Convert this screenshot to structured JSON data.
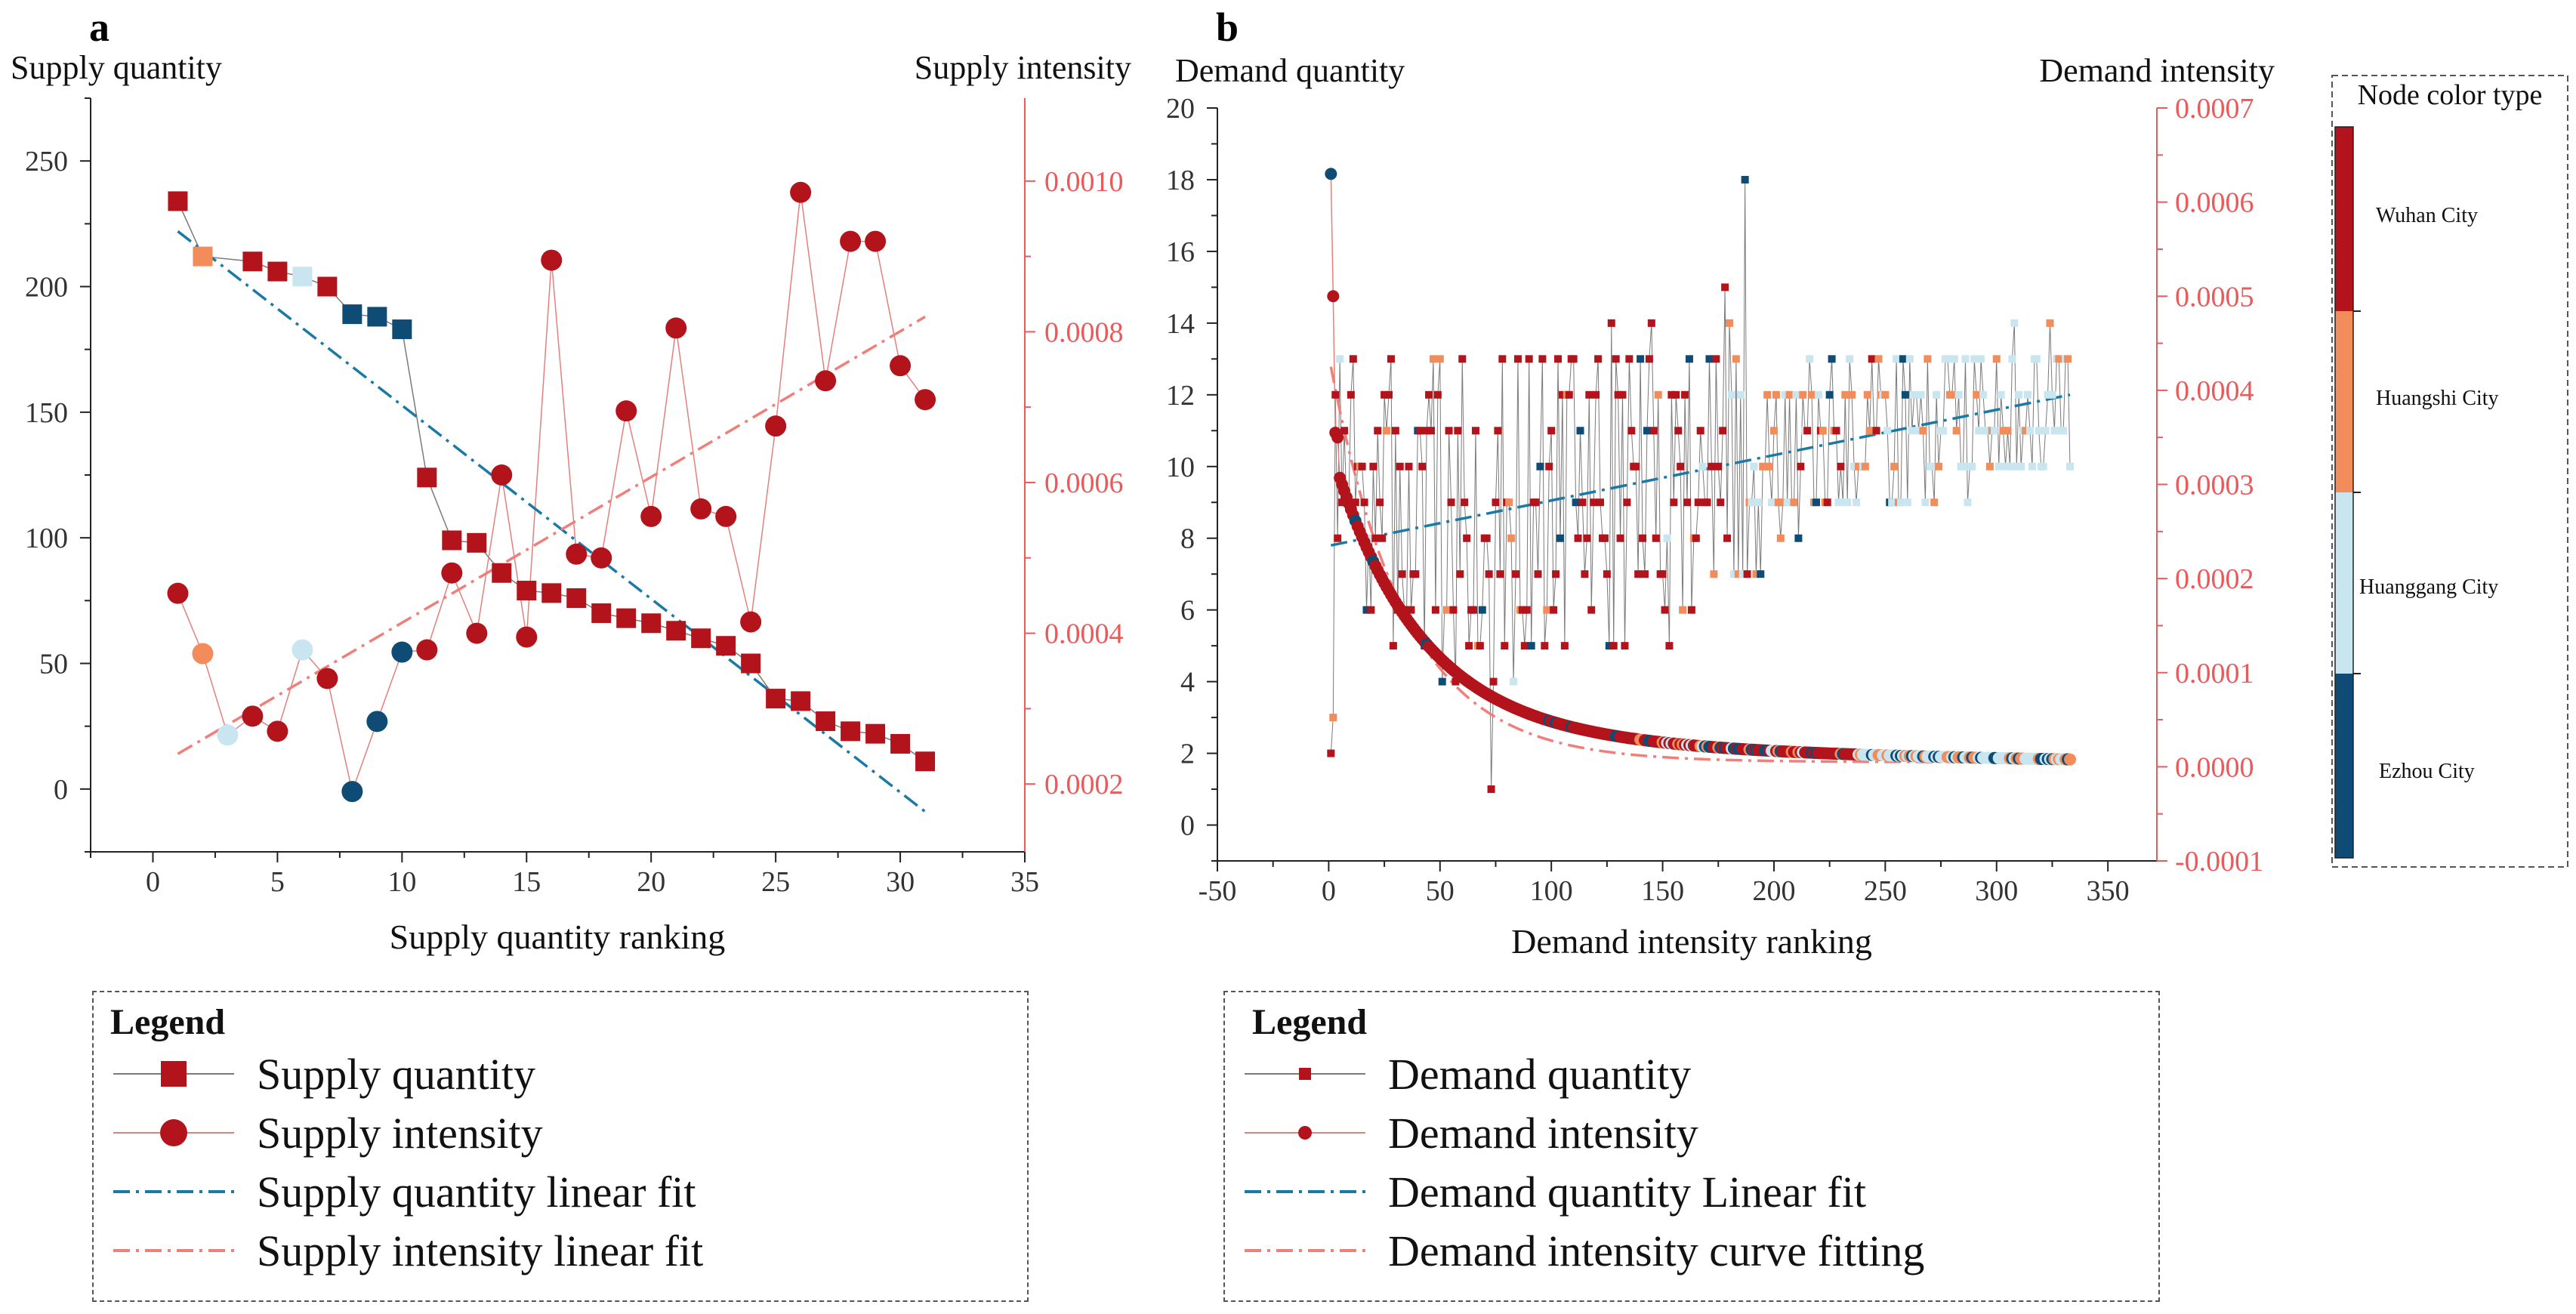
{
  "chart_data": [
    {
      "panel": "a",
      "type": "line",
      "left_axis_title": "Supply quantity",
      "right_axis_title": "Supply intensity",
      "xlabel": "Supply quantity ranking",
      "xlim": [
        -2.5,
        35
      ],
      "xticks": [
        0,
        5,
        10,
        15,
        20,
        25,
        30,
        35
      ],
      "ylim_left": [
        -25,
        275
      ],
      "yticks_left": [
        0,
        50,
        100,
        150,
        200,
        250
      ],
      "ylim_right": [
        0.00011,
        0.00111
      ],
      "yticks_right": [
        "0.0002",
        "0.0004",
        "0.0006",
        "0.0008",
        "0.0010"
      ],
      "yticks_right_values": [
        0.0002,
        0.0004,
        0.0006,
        0.0008,
        0.001
      ],
      "series": [
        {
          "name": "Supply quantity",
          "axis": "left",
          "marker": "square",
          "x": [
            1,
            2,
            4,
            5,
            6,
            7,
            8,
            9,
            10,
            11,
            12,
            13,
            14,
            15,
            16,
            17,
            18,
            19,
            20,
            21,
            22,
            23,
            24,
            25,
            26,
            27,
            28,
            29,
            30,
            31
          ],
          "values": [
            234,
            212,
            210,
            206,
            204,
            200,
            189,
            188,
            183,
            124,
            99,
            98,
            86,
            79,
            78,
            76,
            70,
            68,
            66,
            63,
            60,
            57,
            50,
            36,
            35,
            27,
            23,
            22,
            18,
            11
          ],
          "city": [
            "wuhan",
            "huangshi",
            "wuhan",
            "wuhan",
            "huanggang",
            "wuhan",
            "ezhou",
            "ezhou",
            "ezhou",
            "wuhan",
            "wuhan",
            "wuhan",
            "wuhan",
            "wuhan",
            "wuhan",
            "wuhan",
            "wuhan",
            "wuhan",
            "wuhan",
            "wuhan",
            "wuhan",
            "wuhan",
            "wuhan",
            "wuhan",
            "wuhan",
            "wuhan",
            "wuhan",
            "wuhan",
            "wuhan",
            "wuhan"
          ]
        },
        {
          "name": "Supply intensity",
          "axis": "right",
          "marker": "circle",
          "x": [
            1,
            2,
            3,
            4,
            5,
            6,
            7,
            8,
            9,
            10,
            11,
            12,
            13,
            14,
            15,
            16,
            17,
            18,
            19,
            20,
            21,
            22,
            23,
            24,
            25,
            26,
            27,
            28,
            29,
            30,
            31
          ],
          "values": [
            0.000453,
            0.000373,
            0.000265,
            0.00029,
            0.00027,
            0.000378,
            0.00034,
            0.00019,
            0.000283,
            0.000375,
            0.000378,
            0.00048,
            0.0004,
            0.00061,
            0.000395,
            0.000895,
            0.000505,
            0.0005,
            0.000695,
            0.000555,
            0.000805,
            0.000565,
            0.000555,
            0.000415,
            0.000675,
            0.000985,
            0.000735,
            0.00092,
            0.00092,
            0.000755,
            0.00071
          ],
          "city": [
            "wuhan",
            "huangshi",
            "huanggang",
            "wuhan",
            "wuhan",
            "huanggang",
            "wuhan",
            "ezhou",
            "ezhou",
            "ezhou",
            "wuhan",
            "wuhan",
            "wuhan",
            "wuhan",
            "wuhan",
            "wuhan",
            "wuhan",
            "wuhan",
            "wuhan",
            "wuhan",
            "wuhan",
            "wuhan",
            "wuhan",
            "wuhan",
            "wuhan",
            "wuhan",
            "wuhan",
            "wuhan",
            "wuhan",
            "wuhan",
            "wuhan"
          ]
        },
        {
          "name": "Supply quantity linear fit",
          "axis": "left",
          "marker": "none",
          "x": [
            1,
            31
          ],
          "values": [
            222,
            -9
          ]
        },
        {
          "name": "Supply intensity linear fit",
          "axis": "right",
          "marker": "none",
          "x": [
            1,
            31
          ],
          "values": [
            0.00024,
            0.00082
          ]
        }
      ],
      "legend": {
        "title": "Legend",
        "items": [
          "Supply quantity",
          "Supply intensity",
          "Supply quantity linear fit",
          "Supply intensity linear fit"
        ]
      }
    },
    {
      "panel": "b",
      "type": "line",
      "left_axis_title": "Demand quantity",
      "right_axis_title": "Demand intensity",
      "xlabel": "Demand intensity ranking",
      "xlim": [
        -50,
        372
      ],
      "xticks": [
        -50,
        0,
        50,
        100,
        150,
        200,
        250,
        300,
        350
      ],
      "ylim_left": [
        -1,
        20
      ],
      "yticks_left": [
        0,
        2,
        4,
        6,
        8,
        10,
        12,
        14,
        16,
        18,
        20
      ],
      "ylim_right": [
        -0.0001,
        0.0007
      ],
      "yticks_right": [
        "-0.0001",
        "0.0000",
        "0.0001",
        "0.0002",
        "0.0003",
        "0.0004",
        "0.0005",
        "0.0006",
        "0.0007"
      ],
      "yticks_right_values": [
        -0.0001,
        0,
        0.0001,
        0.0002,
        0.0003,
        0.0004,
        0.0005,
        0.0006,
        0.0007
      ],
      "series": [
        {
          "name": "Demand quantity",
          "axis": "left",
          "marker": "square",
          "description": "333 ranked nodes, values fluctuating mostly between 5 and 16, peak 18 near rank 187"
        },
        {
          "name": "Demand intensity",
          "axis": "right",
          "marker": "circle",
          "description": "decreasing curve from 0.00063 at rank 1 to about 0.0000 at rank 333"
        },
        {
          "name": "Demand quantity Linear fit",
          "axis": "left",
          "marker": "none",
          "x": [
            1,
            333
          ],
          "values": [
            7.8,
            12.0
          ]
        },
        {
          "name": "Demand intensity curve fitting",
          "axis": "right",
          "marker": "none"
        }
      ],
      "legend": {
        "title": "Legend",
        "items": [
          "Demand quantity",
          "Demand intensity",
          "Demand quantity Linear fit",
          "Demand intensity curve fitting"
        ]
      },
      "colorbar": {
        "title": "Node color type",
        "labels": [
          "Wuhan City",
          "Huangshi City",
          "Huanggang City",
          "Ezhou City"
        ]
      }
    }
  ],
  "panel_labels": [
    "a",
    "b"
  ],
  "colors": {
    "wuhan": "#b3141c",
    "huangshi": "#f28c5a",
    "huanggang": "#c9e5f0",
    "ezhou": "#0e4c75",
    "right_axis": "#ea5a5a",
    "quantity_fit": "#1a7aa5",
    "intensity_fit": "#f07f7a",
    "connector_gray": "#7a7a7a",
    "connector_red": "#e3807d"
  }
}
